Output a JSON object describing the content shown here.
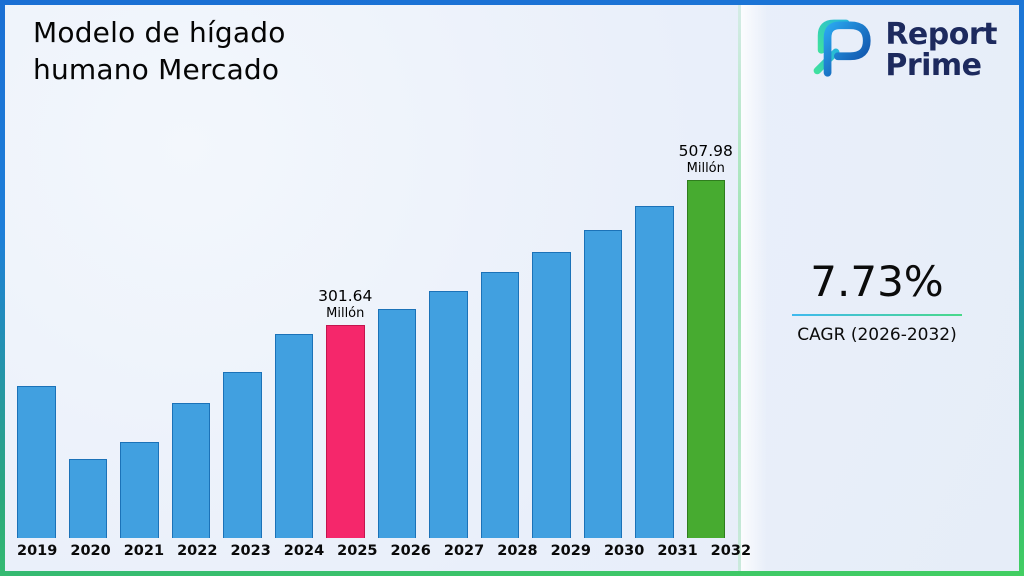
{
  "title": {
    "line1": "Modelo de hígado",
    "line2": "humano Mercado"
  },
  "logo": {
    "word1": "Report",
    "word2": "Prime"
  },
  "kpi": {
    "value": "7.73%",
    "label": "CAGR (2026-2032)"
  },
  "colors": {
    "bar_blue": "#41a0e0",
    "bar_blue_border": "#1b72b8",
    "bar_pink": "#f5276b",
    "bar_pink_border": "#c2154e",
    "bar_green": "#47ab30",
    "bar_green_border": "#2f7d1e",
    "frame_blue": "#1a6fd4",
    "frame_green": "#43cf62",
    "navy_text": "#1d2a5e"
  },
  "chart_data": {
    "type": "bar",
    "title": "Modelo de hígado humano Mercado",
    "xlabel": "",
    "ylabel": "",
    "unit": "Millón",
    "grid": false,
    "legend": false,
    "ylim": [
      0,
      540
    ],
    "categories": [
      "2019",
      "2020",
      "2021",
      "2022",
      "2023",
      "2024",
      "2025",
      "2026",
      "2027",
      "2028",
      "2029",
      "2030",
      "2031",
      "2032"
    ],
    "values": [
      215,
      112,
      136,
      192,
      236,
      290,
      301.64,
      324.96,
      350.07,
      377.13,
      406.28,
      437.68,
      471.51,
      507.98
    ],
    "bar_default_color": "#41a0e0",
    "bar_default_border": "#1b72b8",
    "highlighted_bars": [
      {
        "category": "2025",
        "color": "#f5276b",
        "border": "#c2154e",
        "value_text": "301.64",
        "unit_text": "Millón"
      },
      {
        "category": "2032",
        "color": "#47ab30",
        "border": "#2f7d1e",
        "value_text": "507.98",
        "unit_text": "Millón"
      }
    ],
    "annotations": [
      {
        "category": "2025",
        "text": "301.64 Millón"
      },
      {
        "category": "2032",
        "text": "507.98 Millón"
      }
    ]
  }
}
